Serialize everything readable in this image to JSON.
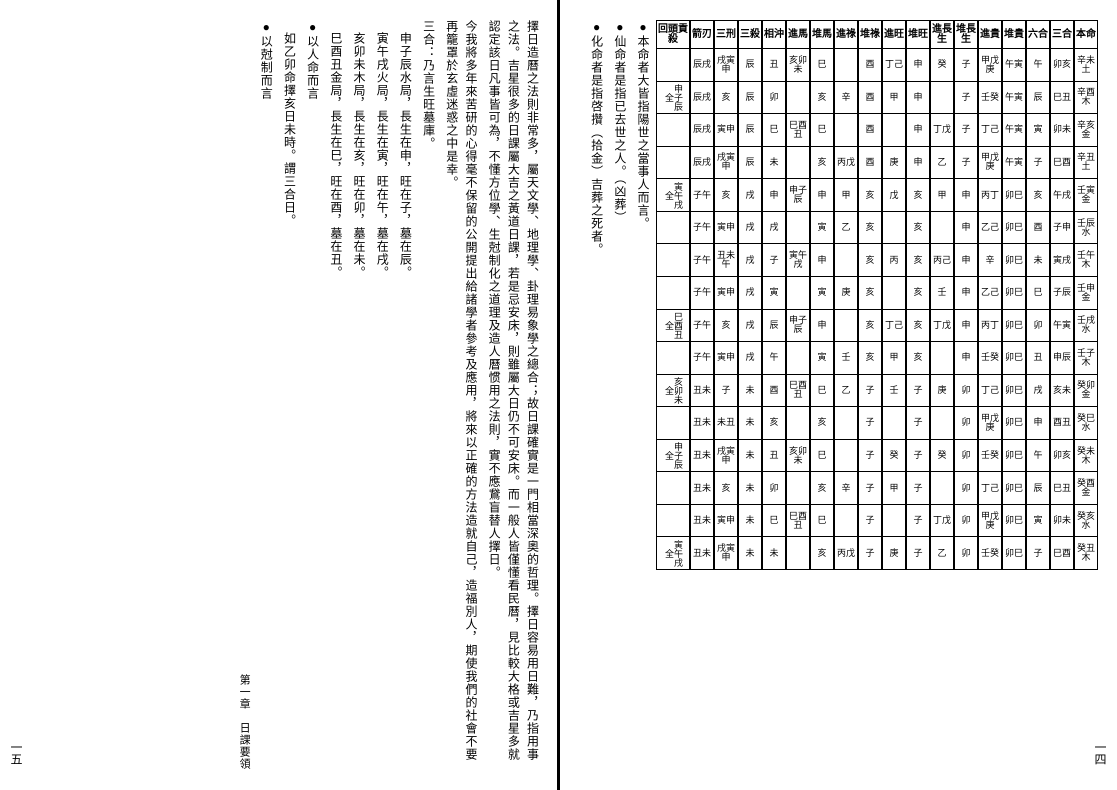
{
  "right_page": {
    "page_num": "一四",
    "table": {
      "columns": [
        {
          "head": "本命",
          "rows": [
            "辛未土",
            "辛酉木",
            "辛亥金",
            "辛丑土",
            "壬寅金",
            "壬辰水",
            "壬午木",
            "壬申金",
            "壬戌水",
            "壬子木",
            "癸卯金",
            "癸巳水",
            "癸未木",
            "癸酉金",
            "癸亥水",
            "癸丑木"
          ]
        },
        {
          "head": "三合",
          "rows": [
            "卯亥",
            "巳丑",
            "卯未",
            "巳酉",
            "午戌",
            "子申",
            "寅戌",
            "子辰",
            "午寅",
            "申辰",
            "亥未",
            "酉丑",
            "卯亥",
            "巳丑",
            "卯未",
            "巳酉"
          ]
        },
        {
          "head": "六合",
          "rows": [
            "午",
            "辰",
            "寅",
            "子",
            "亥",
            "酉",
            "未",
            "巳",
            "卯",
            "丑",
            "戌",
            "申",
            "午",
            "辰",
            "寅",
            "子"
          ]
        },
        {
          "head": "堆貴",
          "rows": [
            "午寅",
            "午寅",
            "午寅",
            "午寅",
            "卯巳",
            "卯巳",
            "卯巳",
            "卯巳",
            "卯巳",
            "卯巳",
            "卯巳",
            "卯巳",
            "卯巳",
            "卯巳",
            "卯巳",
            "卯巳"
          ]
        },
        {
          "head": "進貴",
          "rows": [
            "甲戊庚",
            "壬癸",
            "丁己",
            "甲戊庚",
            "丙丁",
            "乙己",
            "辛",
            "乙己",
            "丙丁",
            "壬癸",
            "丁己",
            "甲戊庚",
            "壬癸",
            "丁己",
            "甲戊庚",
            "壬癸"
          ]
        },
        {
          "head": "堆長生",
          "rows": [
            "子",
            "子",
            "子",
            "子",
            "申",
            "申",
            "申",
            "申",
            "申",
            "申",
            "卯",
            "卯",
            "卯",
            "卯",
            "卯",
            "卯"
          ]
        },
        {
          "head": "進長生",
          "rows": [
            "癸",
            "",
            "丁戊",
            "乙",
            "甲",
            "",
            "丙己",
            "壬",
            "丁戊",
            "",
            "庚",
            "",
            "癸",
            "",
            "丁戊",
            "乙"
          ]
        },
        {
          "head": "堆旺",
          "rows": [
            "申",
            "申",
            "申",
            "申",
            "亥",
            "亥",
            "亥",
            "亥",
            "亥",
            "亥",
            "子",
            "子",
            "子",
            "子",
            "子",
            "子"
          ]
        },
        {
          "head": "進旺",
          "rows": [
            "丁己",
            "甲",
            "",
            "庚",
            "戊",
            "",
            "丙",
            "",
            "丁己",
            "甲",
            "壬",
            "",
            "癸",
            "甲",
            "",
            "庚"
          ]
        },
        {
          "head": "堆祿",
          "rows": [
            "酉",
            "酉",
            "酉",
            "酉",
            "亥",
            "亥",
            "亥",
            "亥",
            "亥",
            "亥",
            "子",
            "子",
            "子",
            "子",
            "子",
            "子"
          ]
        },
        {
          "head": "進祿",
          "rows": [
            "",
            "辛",
            "",
            "丙戊",
            "甲",
            "乙",
            "",
            "庚",
            "",
            "壬",
            "乙",
            "",
            "",
            "辛",
            "",
            "丙戊"
          ]
        },
        {
          "head": "堆馬",
          "rows": [
            "巳",
            "亥",
            "巳",
            "亥",
            "申",
            "寅",
            "申",
            "寅",
            "申",
            "寅",
            "巳",
            "亥",
            "巳",
            "亥",
            "巳",
            "亥"
          ]
        },
        {
          "head": "進馬",
          "rows": [
            "亥卯未",
            "",
            "巳酉丑",
            "",
            "申子辰",
            "",
            "寅午戌",
            "",
            "申子辰",
            "",
            "巳酉丑",
            "",
            "亥卯未",
            "",
            "巳酉丑",
            ""
          ]
        },
        {
          "head": "相沖",
          "rows": [
            "丑",
            "卯",
            "巳",
            "未",
            "申",
            "戌",
            "子",
            "寅",
            "辰",
            "午",
            "酉",
            "亥",
            "丑",
            "卯",
            "巳",
            "未"
          ]
        },
        {
          "head": "三殺",
          "rows": [
            "辰",
            "辰",
            "辰",
            "辰",
            "戌",
            "戌",
            "戌",
            "戌",
            "戌",
            "戌",
            "未",
            "未",
            "未",
            "未",
            "未",
            "未"
          ]
        },
        {
          "head": "三刑",
          "rows": [
            "戌寅申",
            "亥",
            "寅申",
            "戌寅申",
            "亥",
            "寅申",
            "丑未午",
            "寅申",
            "亥",
            "寅申",
            "子",
            "未丑",
            "戌寅申",
            "亥",
            "寅申",
            "戌寅申"
          ]
        },
        {
          "head": "箭刃",
          "rows": [
            "辰戌",
            "辰戌",
            "辰戌",
            "辰戌",
            "子午",
            "子午",
            "子午",
            "子午",
            "子午",
            "子午",
            "丑未",
            "丑未",
            "丑未",
            "丑未",
            "丑未",
            "丑未"
          ]
        },
        {
          "head": "回頭貢殺",
          "rows": [
            "",
            "申子辰全",
            "",
            "",
            "寅午戌全",
            "",
            "",
            "",
            "巳酉丑全",
            "",
            "亥卯未全",
            "",
            "申子辰全",
            "",
            "",
            "寅午戌全"
          ]
        }
      ]
    },
    "notes": [
      "本命者大皆指陽世之當事人而言。",
      "仙命者是指已去世之人。（凶葬）",
      "化命者是指啓攢（拾金）吉葬之死者。"
    ]
  },
  "left_page": {
    "page_num": "一五",
    "footer": "第一章　日課要領",
    "paragraphs": [
      "擇日造曆之法則非常多，屬天文學、地理學、卦理易象學之總合；故日課確實是一門相當深奧的哲理。擇日容易用日難，乃指用事之法。吉星很多的日課屬大吉之黃道日課，若是忌安床，則雖屬大日仍不可安床。而一般人皆僅懂看民曆，見比較大格或吉星多就認定該日凡事皆可為，不懂方位學、生尅制化之道理及造人曆惯用之法則，實不應鵞盲替人擇日。",
      "今我將多年來苦研的心得毫不保留的公開提出給諸學者參考及應用，將來以正確的方法造就自己，造福別人，期使我們的社會不要再籠罩於玄虛迷惑之中是幸。"
    ],
    "section": {
      "title": "三合：乃言生旺墓庫。",
      "items": [
        "申子辰水局，長生在申，旺在子，墓在辰。",
        "寅午戌火局，長生在寅，旺在午，墓在戌。",
        "亥卯未木局，長生在亥，旺在卯，墓在未。",
        "巳酉丑金局，長生在巳，旺在酉，墓在丑。"
      ],
      "bullets": [
        "以人命而言",
        "如乙卯命擇亥日未時。謂三合日。",
        "以尅制而言"
      ]
    }
  }
}
